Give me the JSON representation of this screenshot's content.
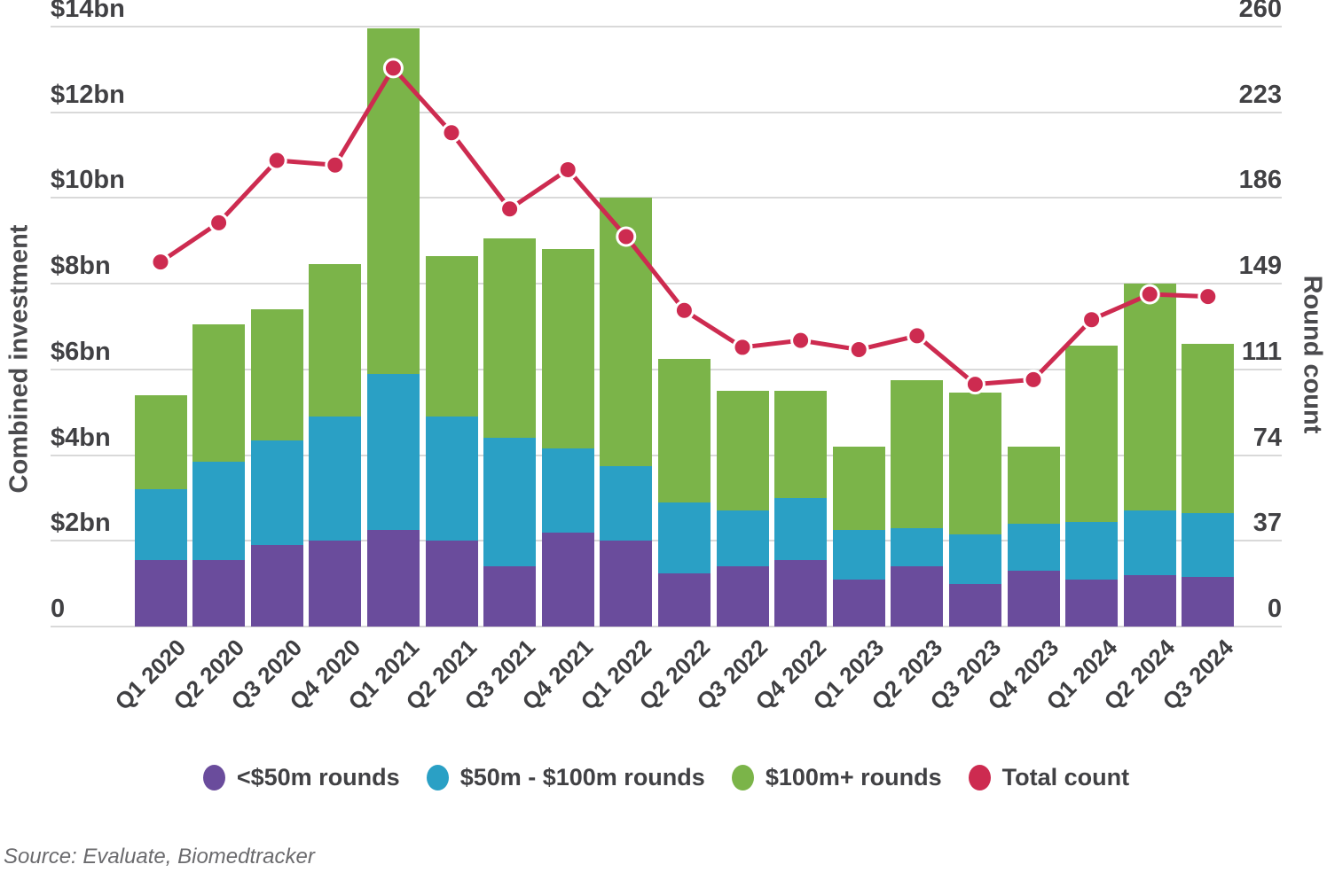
{
  "chart_data": {
    "type": "bar",
    "variant": "stacked-column-with-line-overlay",
    "stacked": true,
    "grid": true,
    "legend_position": "bottom",
    "categories": [
      "Q1 2020",
      "Q2 2020",
      "Q3 2020",
      "Q4 2020",
      "Q1 2021",
      "Q2 2021",
      "Q3 2021",
      "Q4 2021",
      "Q1 2022",
      "Q2 2022",
      "Q3 2022",
      "Q4 2022",
      "Q1 2023",
      "Q2 2023",
      "Q3 2023",
      "Q4 2023",
      "Q1 2024",
      "Q2 2024",
      "Q3 2024"
    ],
    "series": [
      {
        "name": "<$50m rounds",
        "color": "#6a4c9c",
        "unit": "$bn",
        "values": [
          1.55,
          1.55,
          1.9,
          2.0,
          2.25,
          2.0,
          1.4,
          2.2,
          2.0,
          1.25,
          1.4,
          1.55,
          1.1,
          1.4,
          1.0,
          1.3,
          1.1,
          1.2,
          1.15
        ]
      },
      {
        "name": "$50m - $100m rounds",
        "color": "#2aa0c5",
        "unit": "$bn",
        "values": [
          1.65,
          2.3,
          2.45,
          2.9,
          3.65,
          2.9,
          3.0,
          1.95,
          1.75,
          1.65,
          1.3,
          1.45,
          1.15,
          0.9,
          1.15,
          1.1,
          1.35,
          1.5,
          1.5
        ]
      },
      {
        "name": "$100m+ rounds",
        "color": "#7bb449",
        "unit": "$bn",
        "values": [
          2.2,
          3.2,
          3.05,
          3.55,
          8.05,
          3.75,
          4.65,
          4.65,
          6.25,
          3.35,
          2.8,
          2.5,
          1.95,
          3.45,
          3.3,
          1.8,
          4.1,
          5.3,
          3.95
        ]
      }
    ],
    "stack_totals": [
      5.4,
      7.05,
      7.4,
      8.45,
      13.95,
      8.65,
      9.05,
      8.8,
      10.0,
      6.25,
      5.5,
      5.5,
      4.2,
      5.75,
      5.45,
      4.2,
      6.55,
      8.0,
      6.6
    ],
    "line_series": {
      "name": "Total count",
      "color": "#cd2b50",
      "axis": "right",
      "marker": "circle-white-stroke",
      "values": [
        158,
        175,
        202,
        200,
        242,
        214,
        181,
        198,
        169,
        137,
        121,
        124,
        120,
        126,
        105,
        107,
        133,
        144,
        143
      ]
    },
    "y_axis_left": {
      "title": "Combined investment",
      "min": 0,
      "max": 14,
      "ticks": [
        "$14bn",
        "$12bn",
        "$10bn",
        "$8bn",
        "$6bn",
        "$4bn",
        "$2bn",
        "0"
      ]
    },
    "y_axis_right": {
      "title": "Round count",
      "min": 0,
      "max": 260,
      "ticks": [
        "260",
        "223",
        "186",
        "149",
        "111",
        "74",
        "37",
        "0"
      ]
    },
    "legend": [
      {
        "label": "<$50m rounds",
        "color": "#6a4c9c"
      },
      {
        "label": "$50m - $100m rounds",
        "color": "#2aa0c5"
      },
      {
        "label": "$100m+ rounds",
        "color": "#7bb449"
      },
      {
        "label": "Total count",
        "color": "#cd2b50"
      }
    ],
    "source": "Source: Evaluate, Biomedtracker",
    "colors": {
      "gridline": "#d9d9d9",
      "tick_text": "#414144",
      "axis_title_text": "#4b4b4e",
      "source_text": "#6b6b6e"
    }
  }
}
